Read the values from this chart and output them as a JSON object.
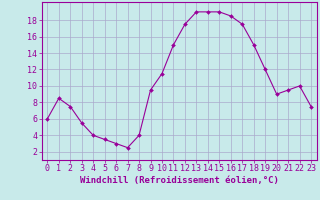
{
  "hours": [
    0,
    1,
    2,
    3,
    4,
    5,
    6,
    7,
    8,
    9,
    10,
    11,
    12,
    13,
    14,
    15,
    16,
    17,
    18,
    19,
    20,
    21,
    22,
    23
  ],
  "values": [
    6.0,
    8.5,
    7.5,
    5.5,
    4.0,
    3.5,
    3.0,
    2.5,
    4.0,
    9.5,
    11.5,
    15.0,
    17.5,
    19.0,
    19.0,
    19.0,
    18.5,
    17.5,
    15.0,
    12.0,
    9.0,
    9.5,
    10.0,
    7.5
  ],
  "line_color": "#990099",
  "marker": "D",
  "marker_size": 2.0,
  "bg_color": "#c8eaea",
  "grid_color": "#aaaacc",
  "xlabel": "Windchill (Refroidissement éolien,°C)",
  "xlabel_color": "#990099",
  "xlabel_fontsize": 6.5,
  "ylabel_ticks": [
    2,
    4,
    6,
    8,
    10,
    12,
    14,
    16,
    18
  ],
  "ylim": [
    1.0,
    20.2
  ],
  "xlim": [
    -0.5,
    23.5
  ],
  "tick_fontsize": 6.0,
  "tick_color": "#990099",
  "spine_color": "#990099",
  "linewidth": 0.8
}
